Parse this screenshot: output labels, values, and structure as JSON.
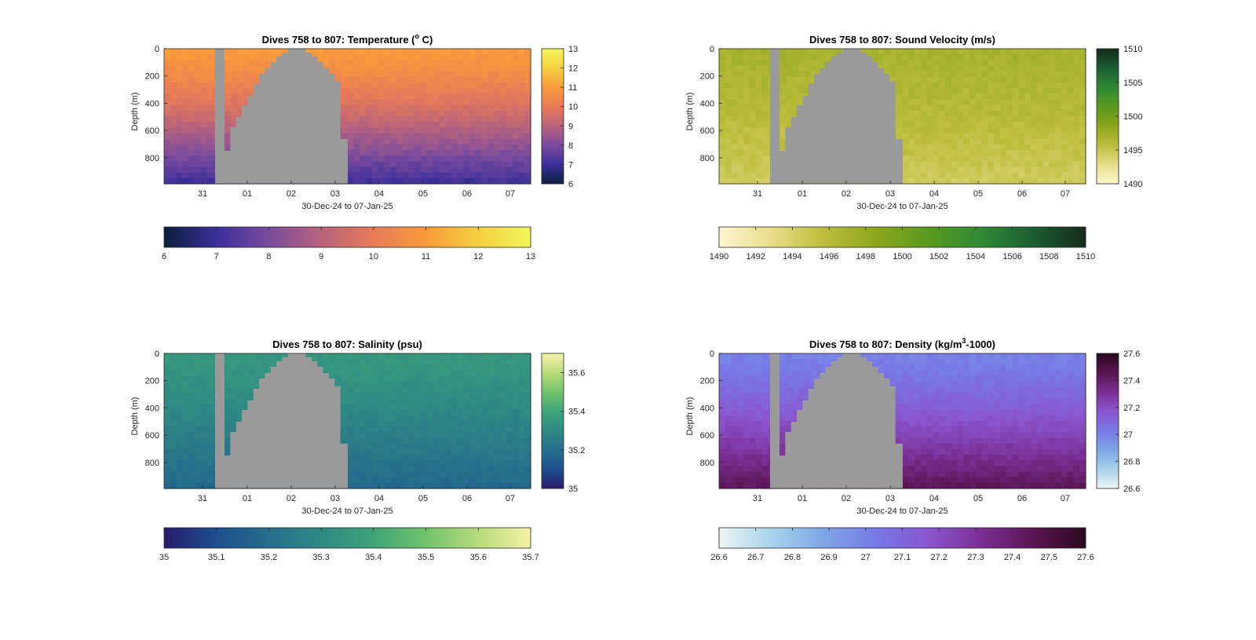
{
  "chart_data": [
    {
      "type": "heatmap",
      "title": "Dives 758 to 807: Temperature (",
      "title_sup": "o",
      "title_suffix": " C)",
      "xlabel": "30-Dec-24 to 07-Jan-25",
      "ylabel": "Depth (m)",
      "x_ticks": [
        "31",
        "01",
        "02",
        "03",
        "04",
        "05",
        "06",
        "07"
      ],
      "y_ticks": [
        0,
        200,
        400,
        600,
        800
      ],
      "ylim": [
        0,
        990
      ],
      "colorbar_right": {
        "ticks": [
          "6",
          "7",
          "8",
          "9",
          "10",
          "11",
          "12",
          "13"
        ],
        "range": [
          6,
          13
        ]
      },
      "colorbar_bottom": {
        "ticks": [
          "6",
          "7",
          "8",
          "9",
          "10",
          "11",
          "12",
          "13"
        ],
        "range": [
          6,
          13
        ]
      },
      "profile": {
        "top": 11.0,
        "bottom": 7.0
      },
      "colormap": [
        "#0b1f3a",
        "#3b2f9a",
        "#7a4b9e",
        "#b8637c",
        "#e77b58",
        "#f99a3b",
        "#f5d041",
        "#f2f55a"
      ]
    },
    {
      "type": "heatmap",
      "title": "Dives 758 to 807: Sound Velocity (m/s)",
      "xlabel": "30-Dec-24 to 07-Jan-25",
      "ylabel": "Depth (m)",
      "x_ticks": [
        "31",
        "01",
        "02",
        "03",
        "04",
        "05",
        "06",
        "07"
      ],
      "y_ticks": [
        0,
        200,
        400,
        600,
        800
      ],
      "ylim": [
        0,
        990
      ],
      "colorbar_right": {
        "ticks": [
          "1490",
          "1495",
          "1500",
          "1505",
          "1510"
        ],
        "range": [
          1490,
          1510
        ]
      },
      "colorbar_bottom": {
        "ticks": [
          "1490",
          "1492",
          "1494",
          "1496",
          "1498",
          "1500",
          "1502",
          "1504",
          "1506",
          "1508",
          "1510"
        ],
        "range": [
          1490,
          1510
        ]
      },
      "profile": {
        "top": 1497.0,
        "bottom": 1494.5
      },
      "colormap": [
        "#fdf6d0",
        "#e8de8a",
        "#bdbd3c",
        "#8ca61c",
        "#5a9a1e",
        "#2f8a36",
        "#1c5e32",
        "#152b1c"
      ]
    },
    {
      "type": "heatmap",
      "title": "Dives 758 to 807: Salinity (psu)",
      "xlabel": "30-Dec-24 to 07-Jan-25",
      "ylabel": "Depth (m)",
      "x_ticks": [
        "31",
        "01",
        "02",
        "03",
        "04",
        "05",
        "06",
        "07"
      ],
      "y_ticks": [
        0,
        200,
        400,
        600,
        800
      ],
      "ylim": [
        0,
        990
      ],
      "colorbar_right": {
        "ticks": [
          "35",
          "35.2",
          "35.4",
          "35.6"
        ],
        "range": [
          35,
          35.7
        ]
      },
      "colorbar_bottom": {
        "ticks": [
          "35",
          "35.1",
          "35.2",
          "35.3",
          "35.4",
          "35.5",
          "35.6",
          "35.7"
        ],
        "range": [
          35,
          35.7
        ]
      },
      "profile": {
        "top": 35.35,
        "bottom": 35.18
      },
      "colormap": [
        "#2a1a6b",
        "#1d4f8f",
        "#256e8c",
        "#2f8a84",
        "#3ea47a",
        "#71c36a",
        "#b8db7a",
        "#f6f1a8"
      ]
    },
    {
      "type": "heatmap",
      "title": "Dives 758 to 807: Density (kg/m",
      "title_sup": "3",
      "title_suffix": "-1000)",
      "xlabel": "30-Dec-24 to 07-Jan-25",
      "ylabel": "Depth (m)",
      "x_ticks": [
        "31",
        "01",
        "02",
        "03",
        "04",
        "05",
        "06",
        "07"
      ],
      "y_ticks": [
        0,
        200,
        400,
        600,
        800
      ],
      "ylim": [
        0,
        990
      ],
      "colorbar_right": {
        "ticks": [
          "26.6",
          "26.8",
          "27",
          "27.2",
          "27.4",
          "27.6"
        ],
        "range": [
          26.6,
          27.6
        ]
      },
      "colorbar_bottom": {
        "ticks": [
          "26.6",
          "26.7",
          "26.8",
          "26.9",
          "27",
          "27.1",
          "27.2",
          "27.3",
          "27.4",
          "27.5",
          "27.6"
        ],
        "range": [
          26.6,
          27.6
        ]
      },
      "profile": {
        "top": 27.0,
        "bottom": 27.45
      },
      "colormap": [
        "#eef5f5",
        "#a9d3ea",
        "#7ea6e6",
        "#7779e6",
        "#8a56cf",
        "#7b2f95",
        "#5a1553",
        "#2b0920"
      ]
    }
  ],
  "colors": {
    "gap": "#9a9a9a",
    "axis": "#262626"
  }
}
